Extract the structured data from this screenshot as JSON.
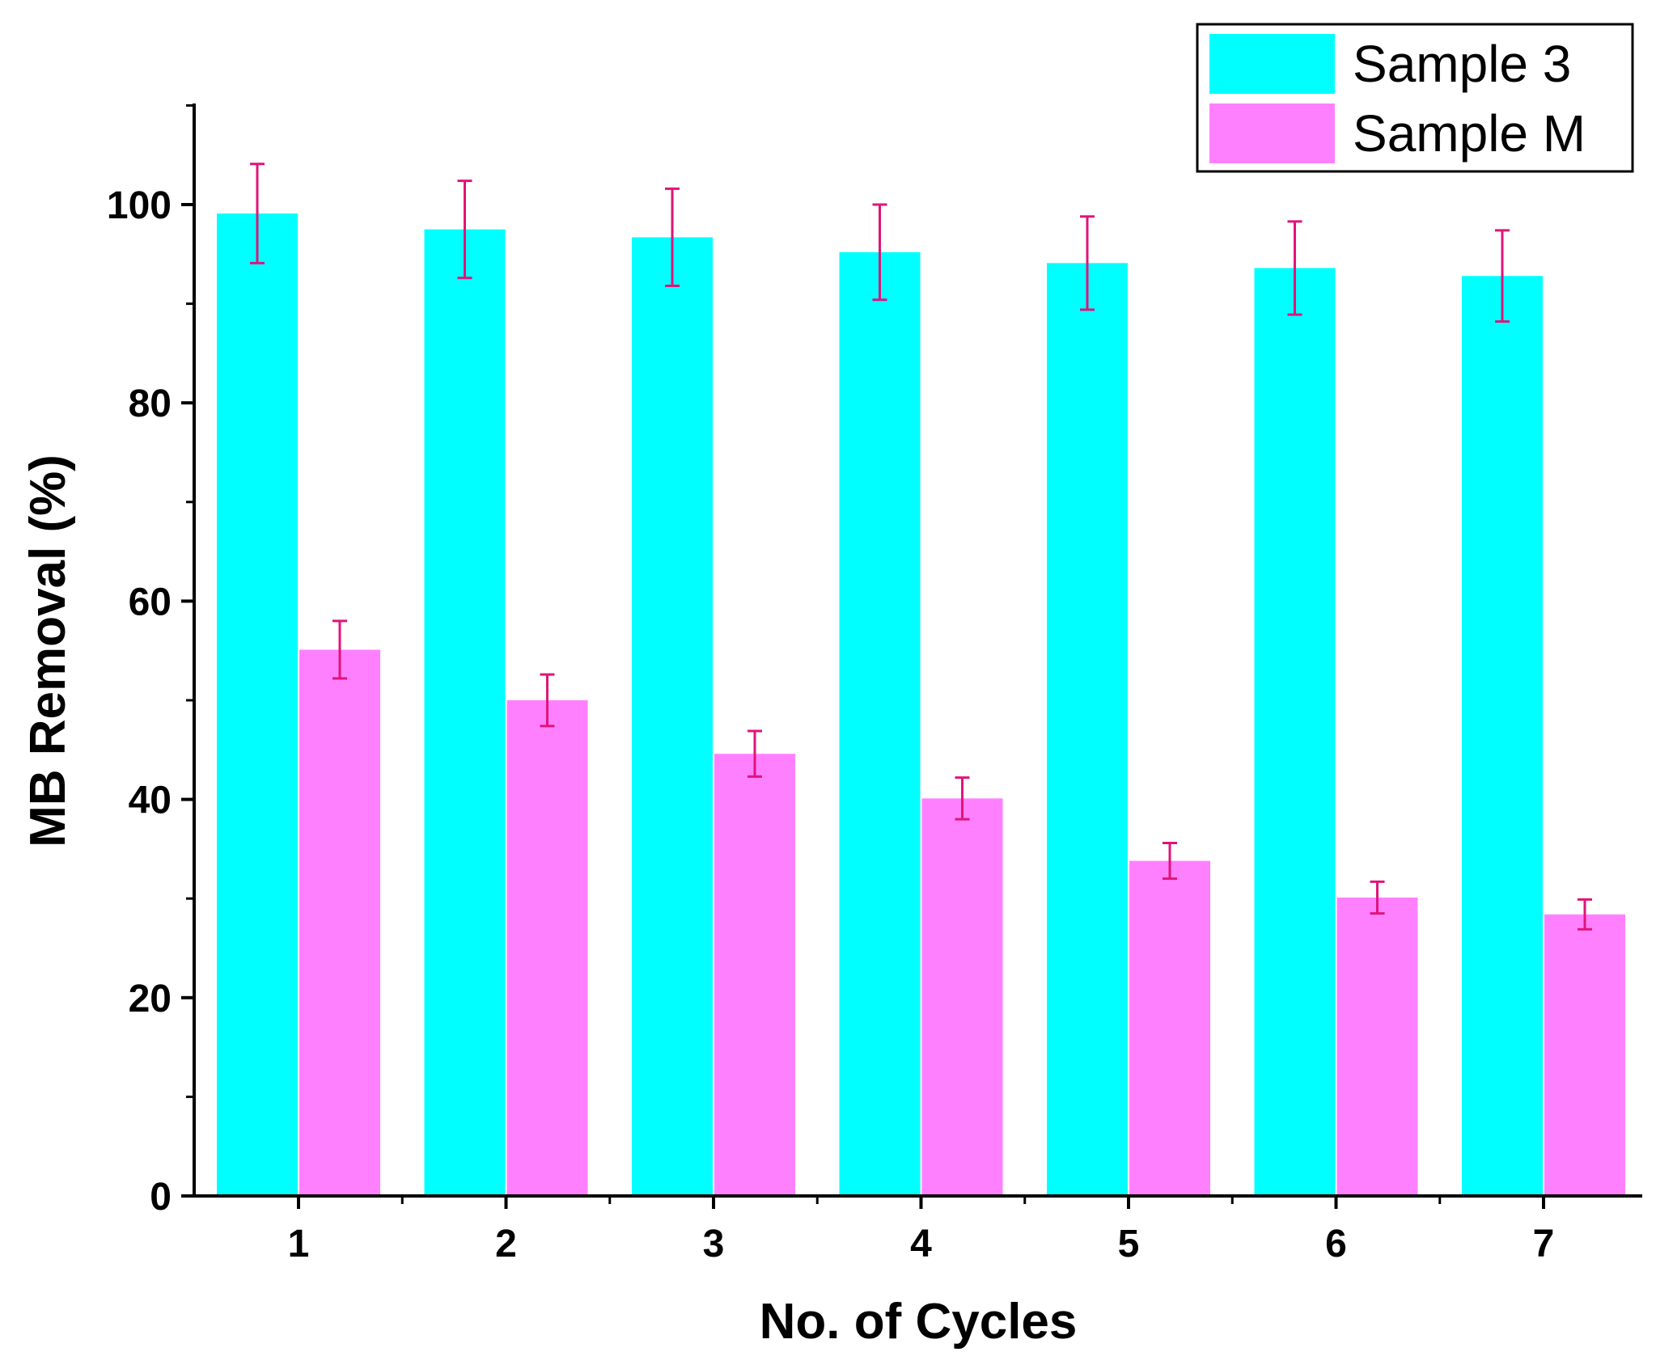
{
  "chart_data": {
    "type": "bar",
    "title": "",
    "xlabel": "No. of Cycles",
    "ylabel": "MB Removal (%)",
    "categories": [
      "1",
      "2",
      "3",
      "4",
      "5",
      "6",
      "7"
    ],
    "ylim": [
      0,
      110
    ],
    "yticks": [
      0,
      20,
      40,
      60,
      80,
      100
    ],
    "ytick_labels": [
      "0",
      "20",
      "40",
      "60",
      "80",
      "100"
    ],
    "legend_position": "top-right",
    "error_bar_color": "#e0147a",
    "series": [
      {
        "name": "Sample 3",
        "color": "#00ffff",
        "values": [
          99.1,
          97.5,
          96.7,
          95.2,
          94.1,
          93.6,
          92.8
        ],
        "errors": [
          5.0,
          4.9,
          4.9,
          4.8,
          4.7,
          4.7,
          4.6
        ]
      },
      {
        "name": "Sample M",
        "color": "#ff80ff",
        "values": [
          55.1,
          50.0,
          44.6,
          40.1,
          33.8,
          30.1,
          28.4
        ],
        "errors": [
          2.9,
          2.6,
          2.3,
          2.1,
          1.8,
          1.6,
          1.5
        ]
      }
    ]
  }
}
